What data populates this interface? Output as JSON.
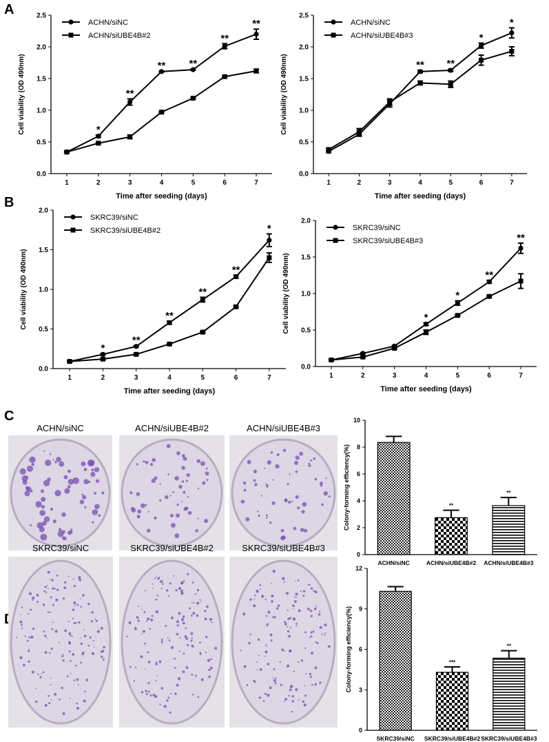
{
  "panel_labels": [
    "A",
    "B",
    "C",
    "D"
  ],
  "photos": [
    [
      "ACHN/siNC",
      "ACHN/siUBE4B#2",
      "ACHN/siUBE4B#3"
    ],
    [
      "SKRC39/siNC",
      "SKRC39/siUBE4B#2",
      "SKRC39/siUBE4B#3"
    ]
  ],
  "chart_data": [
    {
      "type": "line",
      "xlabel": "Time after seeding (days)",
      "ylabel": "Cell viability (OD 490nm)",
      "x": [
        1,
        2,
        3,
        4,
        5,
        6,
        7
      ],
      "xlim": [
        0.5,
        7.5
      ],
      "xticks": [
        1,
        2,
        3,
        4,
        5,
        6,
        7
      ],
      "ylim": [
        0,
        2.5
      ],
      "yticks": [
        {
          "value": 0,
          "label": "0.0"
        },
        0.5,
        {
          "value": 1,
          "label": "1.0"
        },
        1.5,
        {
          "value": 2,
          "label": "2.0"
        },
        2.5
      ],
      "series": [
        {
          "name": "ACHN/siNC",
          "color": "#000000",
          "marker": "circle",
          "values": [
            0.34,
            0.59,
            1.13,
            1.61,
            1.64,
            2.01,
            2.2
          ],
          "errors": [
            0.01,
            0.02,
            0.05,
            0.01,
            0.01,
            0.04,
            0.08
          ]
        },
        {
          "name": "ACHN/siUBE4B#2",
          "color": "#000000",
          "marker": "square",
          "values": [
            0.34,
            0.48,
            0.58,
            0.97,
            1.19,
            1.53,
            1.62
          ],
          "errors": [
            0.01,
            0.01,
            0.03,
            0.01,
            0.01,
            0.01,
            0.03
          ]
        }
      ],
      "significance": [
        null,
        "*",
        "**",
        "**",
        "**",
        "**",
        "**"
      ]
    },
    {
      "type": "line",
      "xlabel": "Time after seeding (days)",
      "ylabel": "Cell viability (OD 490nm)",
      "x": [
        1,
        2,
        3,
        4,
        5,
        6,
        7
      ],
      "xlim": [
        0.5,
        7.5
      ],
      "xticks": [
        1,
        2,
        3,
        4,
        5,
        6,
        7
      ],
      "ylim": [
        0,
        2.5
      ],
      "yticks": [
        {
          "value": 0,
          "label": "0.0"
        },
        0.5,
        {
          "value": 1,
          "label": "1.0"
        },
        1.5,
        {
          "value": 2,
          "label": "2.0"
        },
        2.5
      ],
      "series": [
        {
          "name": "ACHN/siNC",
          "color": "#000000",
          "marker": "circle",
          "values": [
            0.35,
            0.62,
            1.1,
            1.61,
            1.63,
            2.02,
            2.22
          ],
          "errors": [
            0.02,
            0.03,
            0.05,
            0.02,
            0.02,
            0.04,
            0.08
          ]
        },
        {
          "name": "ACHN/siUBE4B#3",
          "color": "#000000",
          "marker": "square",
          "values": [
            0.38,
            0.66,
            1.13,
            1.43,
            1.41,
            1.79,
            1.93
          ],
          "errors": [
            0.02,
            0.05,
            0.05,
            0.03,
            0.05,
            0.08,
            0.07
          ]
        }
      ],
      "significance": [
        null,
        null,
        null,
        "**",
        "**",
        "*",
        "*"
      ]
    },
    {
      "type": "line",
      "xlabel": "Time after seeding (days)",
      "ylabel": "Cell viability (OD 490nm)",
      "x": [
        1,
        2,
        3,
        4,
        5,
        6,
        7
      ],
      "xlim": [
        0.5,
        7.5
      ],
      "xticks": [
        1,
        2,
        3,
        4,
        5,
        6,
        7
      ],
      "ylim": [
        0,
        2
      ],
      "yticks": [
        {
          "value": 0,
          "label": "0.0"
        },
        0.5,
        {
          "value": 1,
          "label": "1.0"
        },
        1.5,
        {
          "value": 2,
          "label": "2.0"
        }
      ],
      "series": [
        {
          "name": "SKRC39/siNC",
          "color": "#000000",
          "marker": "circle",
          "values": [
            0.09,
            0.18,
            0.28,
            0.58,
            0.87,
            1.16,
            1.62
          ],
          "errors": [
            0.01,
            0.01,
            0.01,
            0.02,
            0.03,
            0.02,
            0.08
          ]
        },
        {
          "name": "SKRC39/siUBE4B#2",
          "color": "#000000",
          "marker": "square",
          "values": [
            0.09,
            0.12,
            0.18,
            0.31,
            0.46,
            0.78,
            1.4
          ],
          "errors": [
            0.01,
            0.01,
            0.01,
            0.01,
            0.01,
            0.01,
            0.06
          ]
        }
      ],
      "significance": [
        null,
        "*",
        "**",
        "**",
        "**",
        "**",
        "*"
      ]
    },
    {
      "type": "line",
      "xlabel": "Time after seeding (days)",
      "ylabel": "Cell viability (OD 490nm)",
      "x": [
        1,
        2,
        3,
        4,
        5,
        6,
        7
      ],
      "xlim": [
        0.5,
        7.5
      ],
      "xticks": [
        1,
        2,
        3,
        4,
        5,
        6,
        7
      ],
      "ylim": [
        0,
        2
      ],
      "yticks": [
        {
          "value": 0,
          "label": "0.0"
        },
        0.5,
        {
          "value": 1,
          "label": "1.0"
        },
        1.5,
        {
          "value": 2,
          "label": "2.0"
        }
      ],
      "series": [
        {
          "name": "SKRC39/siNC",
          "color": "#000000",
          "marker": "circle",
          "values": [
            0.09,
            0.18,
            0.28,
            0.58,
            0.87,
            1.16,
            1.62
          ],
          "errors": [
            0.01,
            0.01,
            0.01,
            0.02,
            0.03,
            0.02,
            0.07
          ]
        },
        {
          "name": "SKRC39/siUBE4B#3",
          "color": "#000000",
          "marker": "square",
          "values": [
            0.09,
            0.13,
            0.25,
            0.47,
            0.7,
            0.96,
            1.17
          ],
          "errors": [
            0.01,
            0.01,
            0.01,
            0.03,
            0.01,
            0.01,
            0.1
          ]
        }
      ],
      "significance": [
        null,
        null,
        null,
        "*",
        "*",
        "**",
        "**"
      ]
    },
    {
      "type": "bar",
      "ylabel": "Colony-forming efficiency(%)",
      "categories": [
        "ACHN/siNC",
        "ACHN/siUBE4B#2",
        "ACHN/siUBE4B#3"
      ],
      "values": [
        8.35,
        2.75,
        3.65
      ],
      "errors": [
        0.45,
        0.55,
        0.6
      ],
      "patterns": [
        "fine-checker",
        "coarse-checker",
        "stripes"
      ],
      "ylim": [
        0,
        10
      ],
      "yticks": [
        0,
        2,
        4,
        6,
        8,
        10
      ],
      "significance": [
        null,
        "**",
        "**"
      ]
    },
    {
      "type": "bar",
      "ylabel": "Colony-forming efficiency(%)",
      "categories": [
        "SKRC39/siNC",
        "SKRC39/siUBE4B#2",
        "SKRC39/siUBE4B#3"
      ],
      "values": [
        10.3,
        4.3,
        5.35
      ],
      "errors": [
        0.35,
        0.4,
        0.55
      ],
      "patterns": [
        "fine-checker",
        "coarse-checker",
        "stripes"
      ],
      "ylim": [
        0,
        12
      ],
      "yticks": [
        0,
        3,
        6,
        9,
        12
      ],
      "significance": [
        null,
        "***",
        "**"
      ]
    }
  ]
}
